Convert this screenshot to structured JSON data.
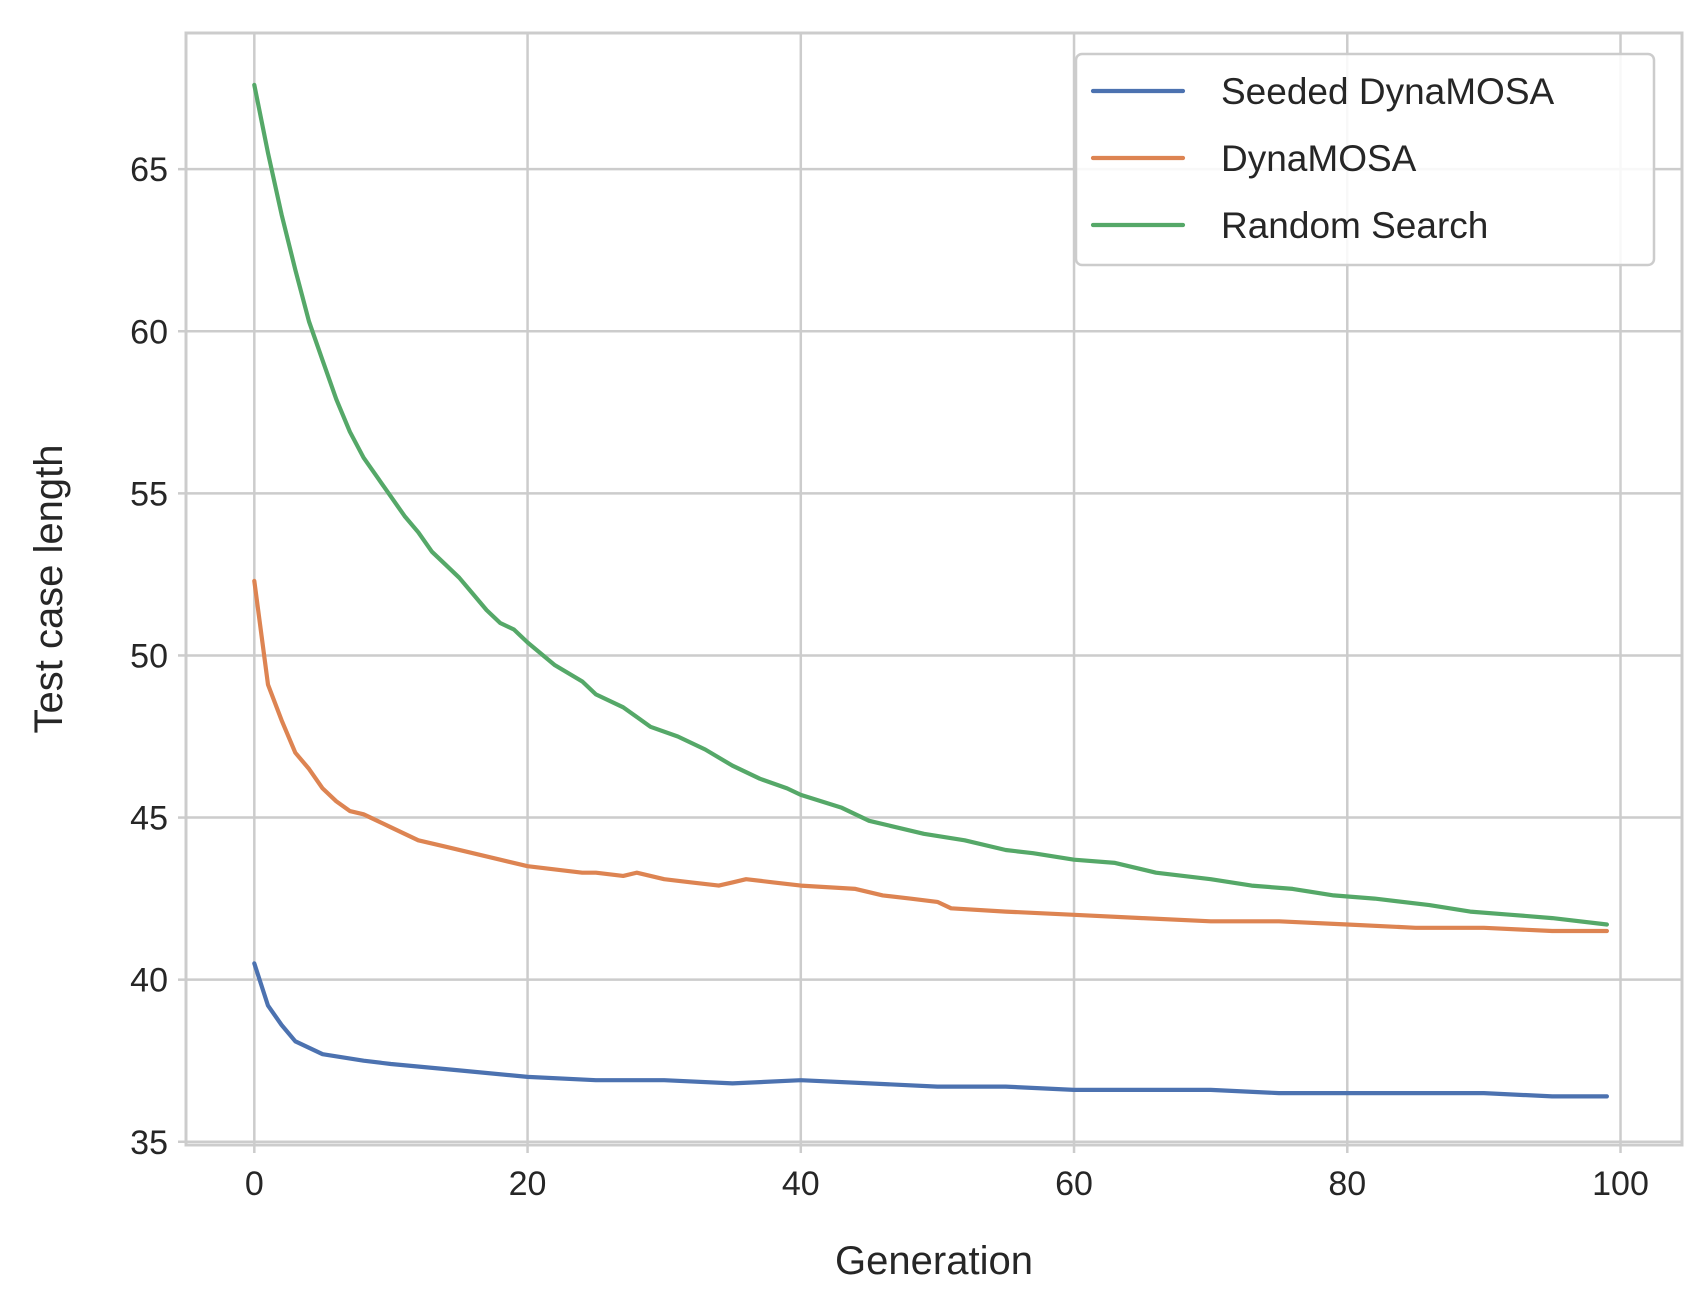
{
  "chart_data": {
    "type": "line",
    "title": "",
    "xlabel": "Generation",
    "ylabel": "Test case length",
    "xlim": [
      -5,
      104.5
    ],
    "ylim": [
      34.9,
      69.2
    ],
    "x_ticks": [
      0,
      20,
      40,
      60,
      80,
      100
    ],
    "y_ticks": [
      35,
      40,
      45,
      50,
      55,
      60,
      65
    ],
    "grid": true,
    "legend_position": "top-right",
    "series": [
      {
        "name": "Seeded DynaMOSA",
        "color": "#4c72b0",
        "points": [
          [
            0,
            40.5
          ],
          [
            1,
            39.2
          ],
          [
            2,
            38.6
          ],
          [
            3,
            38.1
          ],
          [
            5,
            37.7
          ],
          [
            8,
            37.5
          ],
          [
            10,
            37.4
          ],
          [
            15,
            37.2
          ],
          [
            20,
            37.0
          ],
          [
            25,
            36.9
          ],
          [
            30,
            36.9
          ],
          [
            35,
            36.8
          ],
          [
            40,
            36.9
          ],
          [
            45,
            36.8
          ],
          [
            50,
            36.7
          ],
          [
            55,
            36.7
          ],
          [
            60,
            36.6
          ],
          [
            65,
            36.6
          ],
          [
            70,
            36.6
          ],
          [
            75,
            36.5
          ],
          [
            80,
            36.5
          ],
          [
            85,
            36.5
          ],
          [
            90,
            36.5
          ],
          [
            95,
            36.4
          ],
          [
            99,
            36.4
          ]
        ]
      },
      {
        "name": "DynaMOSA",
        "color": "#dd8452",
        "points": [
          [
            0,
            52.3
          ],
          [
            1,
            49.1
          ],
          [
            2,
            48.0
          ],
          [
            3,
            47.0
          ],
          [
            4,
            46.5
          ],
          [
            5,
            45.9
          ],
          [
            6,
            45.5
          ],
          [
            7,
            45.2
          ],
          [
            8,
            45.1
          ],
          [
            9,
            44.9
          ],
          [
            10,
            44.7
          ],
          [
            12,
            44.3
          ],
          [
            14,
            44.1
          ],
          [
            16,
            43.9
          ],
          [
            18,
            43.7
          ],
          [
            20,
            43.5
          ],
          [
            22,
            43.4
          ],
          [
            24,
            43.3
          ],
          [
            25,
            43.3
          ],
          [
            27,
            43.2
          ],
          [
            28,
            43.3
          ],
          [
            30,
            43.1
          ],
          [
            32,
            43.0
          ],
          [
            34,
            42.9
          ],
          [
            35,
            43.0
          ],
          [
            36,
            43.1
          ],
          [
            38,
            43.0
          ],
          [
            40,
            42.9
          ],
          [
            44,
            42.8
          ],
          [
            46,
            42.6
          ],
          [
            48,
            42.5
          ],
          [
            50,
            42.4
          ],
          [
            51,
            42.2
          ],
          [
            55,
            42.1
          ],
          [
            60,
            42.0
          ],
          [
            65,
            41.9
          ],
          [
            70,
            41.8
          ],
          [
            75,
            41.8
          ],
          [
            80,
            41.7
          ],
          [
            85,
            41.6
          ],
          [
            90,
            41.6
          ],
          [
            95,
            41.5
          ],
          [
            99,
            41.5
          ]
        ]
      },
      {
        "name": "Random Search",
        "color": "#55a868",
        "points": [
          [
            0,
            67.6
          ],
          [
            1,
            65.5
          ],
          [
            2,
            63.6
          ],
          [
            3,
            61.9
          ],
          [
            4,
            60.3
          ],
          [
            5,
            59.1
          ],
          [
            6,
            57.9
          ],
          [
            7,
            56.9
          ],
          [
            8,
            56.1
          ],
          [
            9,
            55.5
          ],
          [
            10,
            54.9
          ],
          [
            11,
            54.3
          ],
          [
            12,
            53.8
          ],
          [
            13,
            53.2
          ],
          [
            14,
            52.8
          ],
          [
            15,
            52.4
          ],
          [
            16,
            51.9
          ],
          [
            17,
            51.4
          ],
          [
            18,
            51.0
          ],
          [
            19,
            50.8
          ],
          [
            20,
            50.4
          ],
          [
            22,
            49.7
          ],
          [
            24,
            49.2
          ],
          [
            25,
            48.8
          ],
          [
            27,
            48.4
          ],
          [
            29,
            47.8
          ],
          [
            31,
            47.5
          ],
          [
            33,
            47.1
          ],
          [
            35,
            46.6
          ],
          [
            37,
            46.2
          ],
          [
            39,
            45.9
          ],
          [
            40,
            45.7
          ],
          [
            43,
            45.3
          ],
          [
            45,
            44.9
          ],
          [
            47,
            44.7
          ],
          [
            49,
            44.5
          ],
          [
            52,
            44.3
          ],
          [
            55,
            44.0
          ],
          [
            57,
            43.9
          ],
          [
            60,
            43.7
          ],
          [
            63,
            43.6
          ],
          [
            66,
            43.3
          ],
          [
            70,
            43.1
          ],
          [
            73,
            42.9
          ],
          [
            76,
            42.8
          ],
          [
            79,
            42.6
          ],
          [
            82,
            42.5
          ],
          [
            86,
            42.3
          ],
          [
            89,
            42.1
          ],
          [
            92,
            42.0
          ],
          [
            95,
            41.9
          ],
          [
            99,
            41.7
          ]
        ]
      }
    ]
  }
}
